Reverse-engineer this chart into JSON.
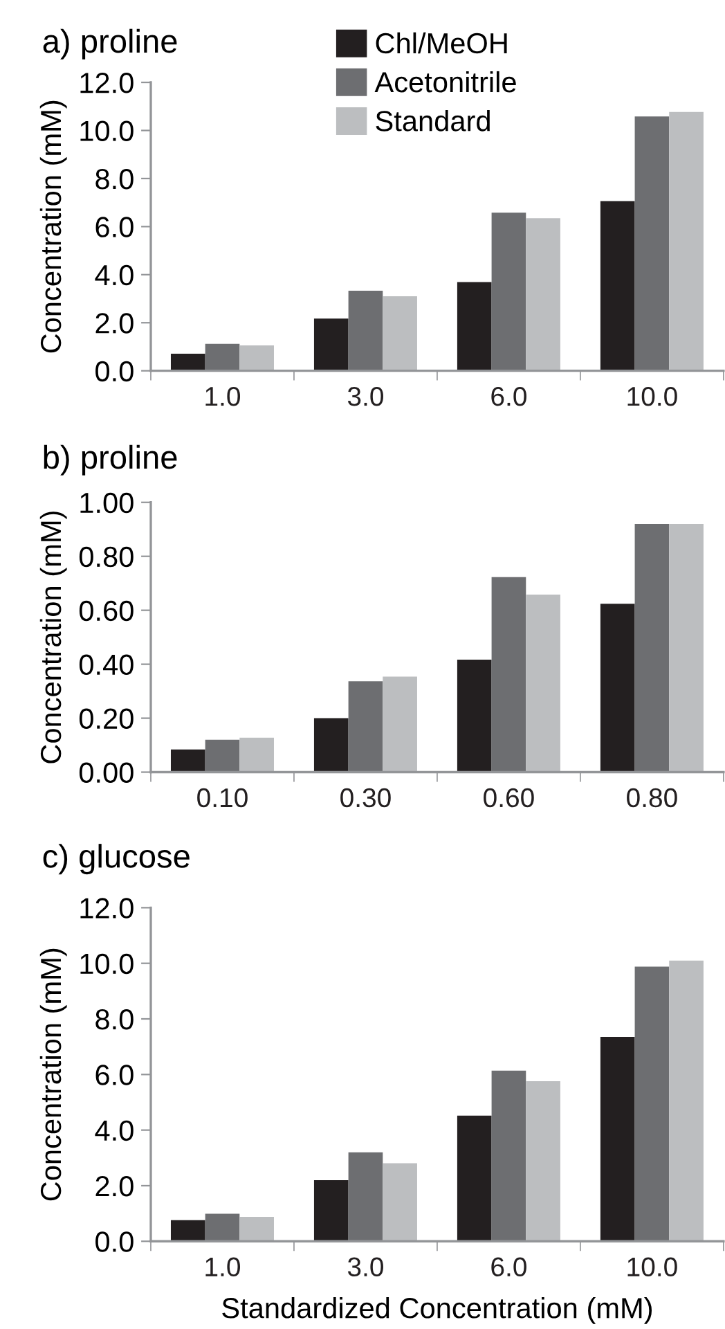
{
  "chart_data": [
    {
      "type": "bar",
      "title": "a) proline",
      "ylabel": "Concentration (mM)",
      "categories": [
        "1.0",
        "3.0",
        "6.0",
        "10.0"
      ],
      "ylim": [
        0,
        12
      ],
      "yticks": [
        {
          "value": 0,
          "label": "0.0"
        },
        {
          "value": 2,
          "label": "2.0"
        },
        {
          "value": 4,
          "label": "4.0"
        },
        {
          "value": 6,
          "label": "6.0"
        },
        {
          "value": 8,
          "label": "8.0"
        },
        {
          "value": 10,
          "label": "10.0"
        },
        {
          "value": 12,
          "label": "12.0"
        }
      ],
      "legend": "top",
      "grid": false,
      "series": [
        {
          "name": "Chl/MeOH",
          "color": "#231f20",
          "values": [
            0.71,
            2.17,
            3.69,
            7.06
          ]
        },
        {
          "name": "Acetonitrile",
          "color": "#6d6e71",
          "values": [
            1.12,
            3.33,
            6.58,
            10.58
          ]
        },
        {
          "name": "Standard",
          "color": "#bcbec0",
          "values": [
            1.06,
            3.1,
            6.35,
            10.77
          ]
        }
      ]
    },
    {
      "type": "bar",
      "title": "b) proline",
      "ylabel": "Concentration (mM)",
      "categories": [
        "0.10",
        "0.30",
        "0.60",
        "0.80"
      ],
      "ylim": [
        0,
        1
      ],
      "yticks": [
        {
          "value": 0,
          "label": "0.00"
        },
        {
          "value": 0.2,
          "label": "0.20"
        },
        {
          "value": 0.4,
          "label": "0.40"
        },
        {
          "value": 0.6,
          "label": "0.60"
        },
        {
          "value": 0.8,
          "label": "0.80"
        },
        {
          "value": 1,
          "label": "1.00"
        }
      ],
      "grid": false,
      "series": [
        {
          "color": "#231f20",
          "values": [
            0.084,
            0.2,
            0.417,
            0.624
          ]
        },
        {
          "color": "#6d6e71",
          "values": [
            0.12,
            0.337,
            0.723,
            0.92
          ]
        },
        {
          "color": "#bcbec0",
          "values": [
            0.128,
            0.354,
            0.658,
            0.92
          ]
        }
      ]
    },
    {
      "type": "bar",
      "title": "c) glucose",
      "ylabel": "Concentration (mM)",
      "xlabel": "Standardized Concentration (mM)",
      "categories": [
        "1.0",
        "3.0",
        "6.0",
        "10.0"
      ],
      "ylim": [
        0,
        12
      ],
      "yticks": [
        {
          "value": 0,
          "label": "0.0"
        },
        {
          "value": 2,
          "label": "2.0"
        },
        {
          "value": 4,
          "label": "4.0"
        },
        {
          "value": 6,
          "label": "6.0"
        },
        {
          "value": 8,
          "label": "8.0"
        },
        {
          "value": 10,
          "label": "10.0"
        },
        {
          "value": 12,
          "label": "12.0"
        }
      ],
      "grid": false,
      "series": [
        {
          "color": "#231f20",
          "values": [
            0.76,
            2.2,
            4.52,
            7.35
          ]
        },
        {
          "color": "#6d6e71",
          "values": [
            0.99,
            3.2,
            6.14,
            9.88
          ]
        },
        {
          "color": "#bcbec0",
          "values": [
            0.88,
            2.81,
            5.76,
            10.1
          ]
        }
      ]
    }
  ]
}
